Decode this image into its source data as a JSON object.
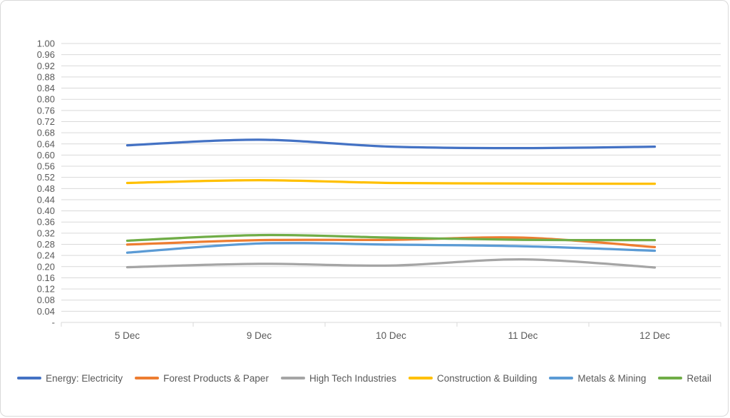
{
  "window": {
    "background": "#ffffff",
    "border_color": "#d9d9d9"
  },
  "chart_data": {
    "type": "line",
    "title": "",
    "xlabel": "",
    "ylabel": "",
    "categories": [
      "5 Dec",
      "9 Dec",
      "10 Dec",
      "11 Dec",
      "12 Dec"
    ],
    "series": [
      {
        "name": "Energy: Electricity",
        "color": "#4472C4",
        "values": [
          0.635,
          0.655,
          0.63,
          0.625,
          0.63
        ]
      },
      {
        "name": "Forest Products & Paper",
        "color": "#ED7D31",
        "values": [
          0.279,
          0.295,
          0.296,
          0.304,
          0.27
        ]
      },
      {
        "name": "High Tech Industries",
        "color": "#A5A5A5",
        "values": [
          0.198,
          0.21,
          0.204,
          0.226,
          0.197
        ]
      },
      {
        "name": "Construction & Building",
        "color": "#FFC000",
        "values": [
          0.5,
          0.51,
          0.5,
          0.498,
          0.497
        ]
      },
      {
        "name": "Metals & Mining",
        "color": "#5B9BD5",
        "values": [
          0.25,
          0.283,
          0.279,
          0.273,
          0.257
        ]
      },
      {
        "name": "Retail",
        "color": "#70AD47",
        "values": [
          0.293,
          0.313,
          0.304,
          0.296,
          0.295
        ]
      }
    ],
    "ylim": [
      0,
      1.0
    ],
    "ytick_step": 0.04,
    "ytick_labels": [
      "1.00",
      "0.96",
      "0.92",
      "0.88",
      "0.84",
      "0.80",
      "0.76",
      "0.72",
      "0.68",
      "0.64",
      "0.60",
      "0.56",
      "0.52",
      "0.48",
      "0.44",
      "0.40",
      "0.36",
      "0.32",
      "0.28",
      "0.24",
      "0.16",
      "0.12",
      "0.08",
      "0.04",
      "-"
    ],
    "ytick_labels_full": [
      "1.00",
      "0.96",
      "0.92",
      "0.88",
      "0.84",
      "0.80",
      "0.76",
      "0.72",
      "0.68",
      "0.64",
      "0.60",
      "0.56",
      "0.52",
      "0.48",
      "0.44",
      "0.40",
      "0.36",
      "0.32",
      "0.28",
      "0.24",
      "0.20",
      "0.16",
      "0.12",
      "0.08",
      "0.04",
      "-"
    ],
    "grid": true,
    "gridline_color": "#d9d9d9",
    "axis_line_color": "#d9d9d9",
    "axis_text_color": "#595959",
    "legend_position": "bottom",
    "smooth_lines": true
  }
}
